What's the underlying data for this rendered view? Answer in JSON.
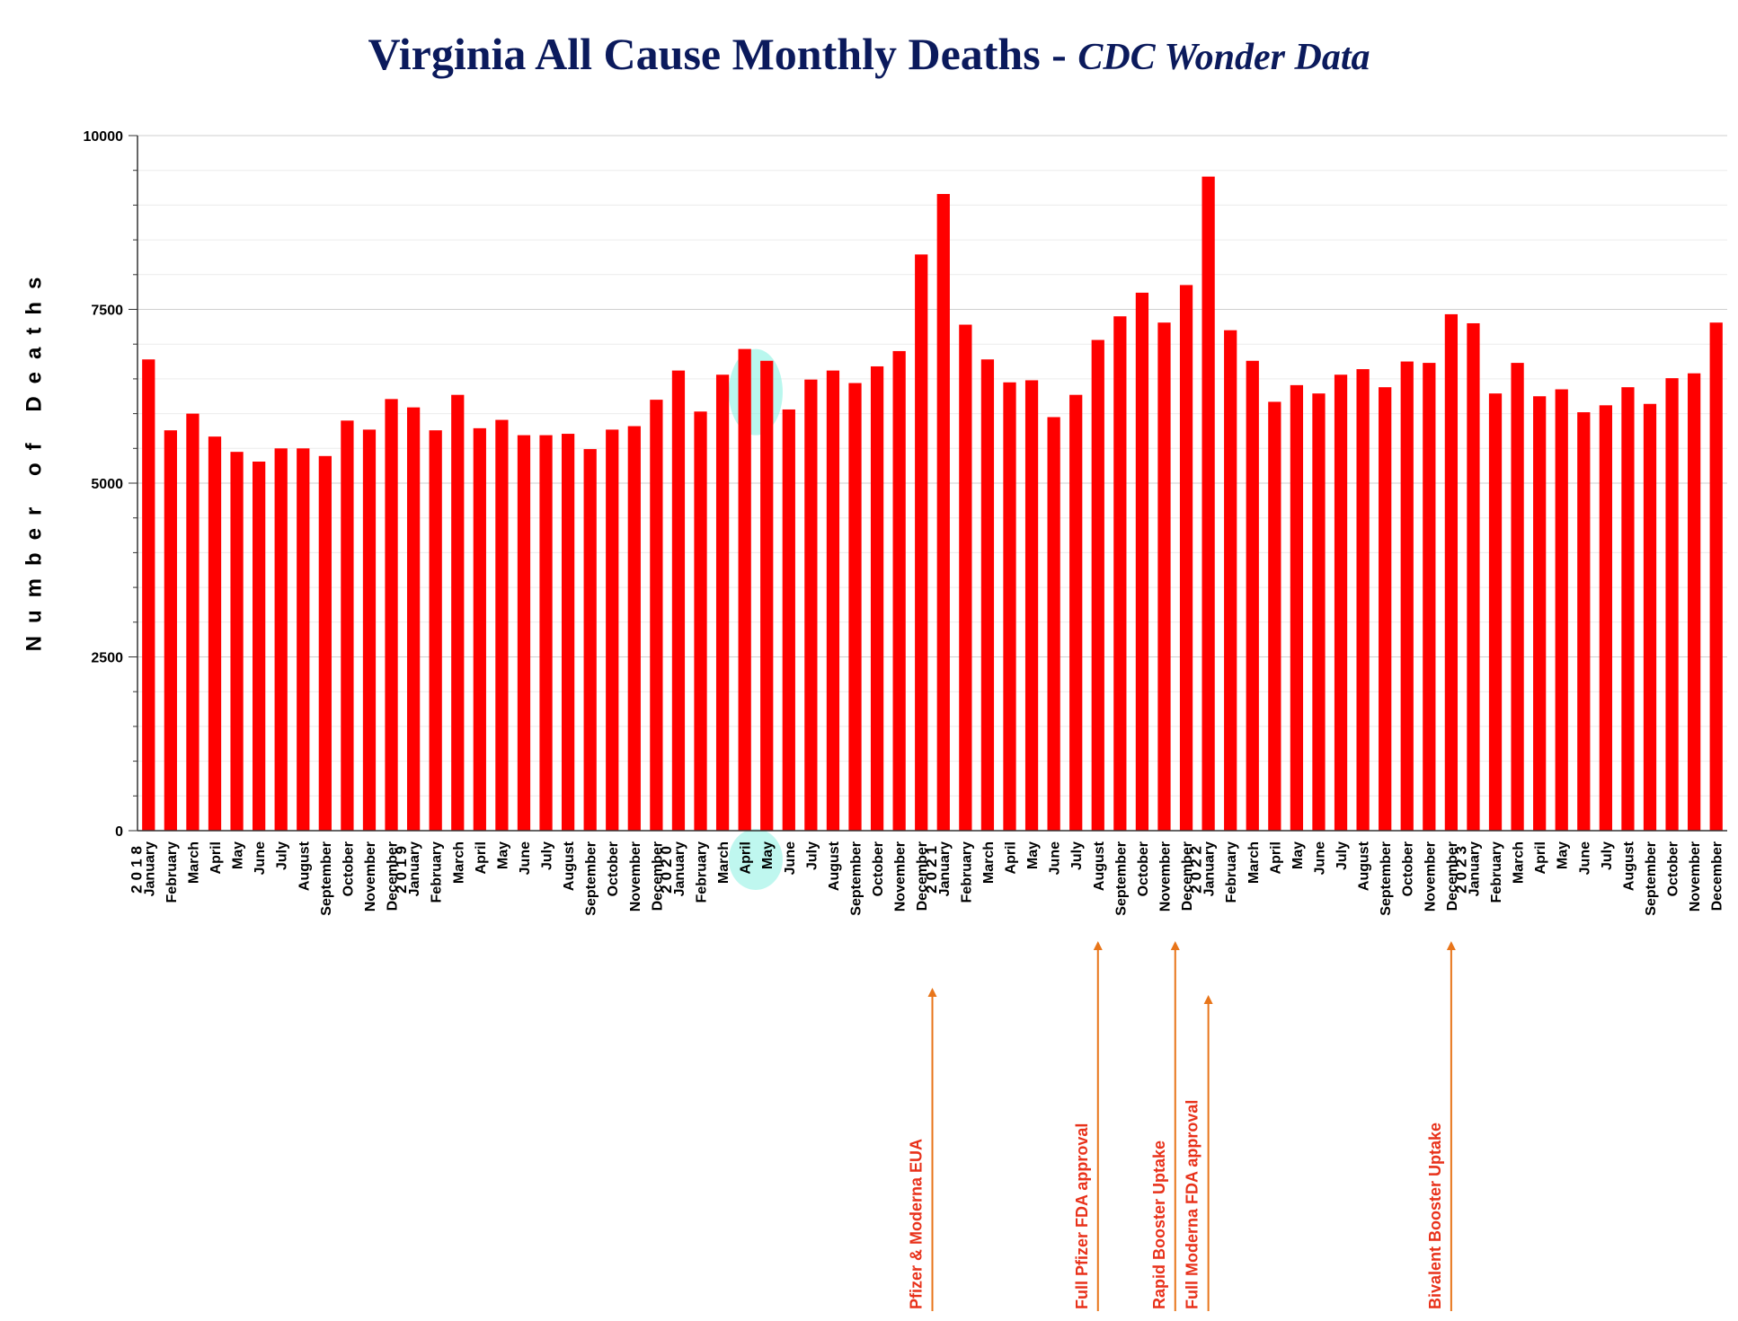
{
  "title": {
    "main": "Virginia All Cause Monthly Deaths - ",
    "sub": "CDC Wonder Data"
  },
  "colors": {
    "bar": "#ff0000",
    "title": "#0b1a5c",
    "annotation_text": "#e8311a",
    "annotation_arrow": "#e8751a",
    "highlight": "#7ff0e0"
  },
  "chart_data": {
    "type": "bar",
    "title": "Virginia All Cause Monthly Deaths - CDC Wonder Data",
    "ylabel": "Number of Deaths",
    "xlabel": "",
    "ylim": [
      0,
      10000
    ],
    "yticks": [
      0,
      2500,
      5000,
      7500,
      10000
    ],
    "grid": true,
    "years": [
      "2018",
      "2019",
      "2020",
      "2021",
      "2022",
      "2023"
    ],
    "months": [
      "January",
      "February",
      "March",
      "April",
      "May",
      "June",
      "July",
      "August",
      "September",
      "October",
      "November",
      "December"
    ],
    "values": [
      6780,
      5760,
      6000,
      5670,
      5450,
      5310,
      5500,
      5500,
      5390,
      5900,
      5770,
      6210,
      6090,
      5760,
      6270,
      5790,
      5910,
      5690,
      5690,
      5710,
      5490,
      5770,
      5820,
      6200,
      6620,
      6030,
      6560,
      6930,
      6760,
      6060,
      6490,
      6620,
      6440,
      6680,
      6900,
      8290,
      9160,
      7280,
      6780,
      6450,
      6480,
      5950,
      6270,
      7060,
      7400,
      7740,
      7310,
      7850,
      9410,
      7200,
      6760,
      6170,
      6410,
      6290,
      6560,
      6640,
      6380,
      6750,
      6730,
      7430,
      7300,
      6290,
      6730,
      6250,
      6350,
      6020,
      6120,
      6380,
      6140,
      6510,
      6580,
      7310
    ],
    "highlight": {
      "start_index": 27,
      "end_index": 28,
      "labels": [
        "April",
        "May"
      ]
    },
    "annotations": [
      {
        "label": "Pfizer & Moderna EUA",
        "index": 35.5,
        "position": "after"
      },
      {
        "label": "Full Pfizer FDA approval",
        "index": 43,
        "position": "at"
      },
      {
        "label": "Rapid Booster Uptake",
        "index": 46.5,
        "position": "after"
      },
      {
        "label": "Full Moderna FDA approval",
        "index": 48,
        "position": "at"
      },
      {
        "label": "Bivalent Booster Uptake",
        "index": 59,
        "position": "at"
      }
    ]
  }
}
